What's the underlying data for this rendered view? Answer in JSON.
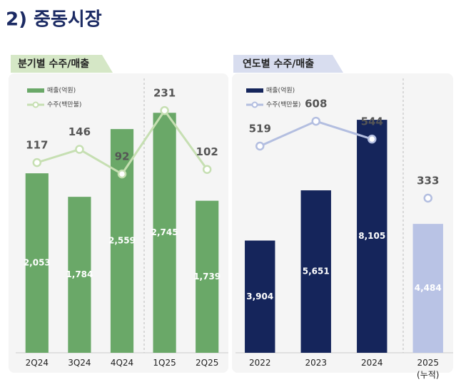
{
  "title": "2) 중동시장",
  "chart_data": [
    {
      "type": "bar_line",
      "tab": "분기별 수주/매출",
      "categories": [
        "2Q24",
        "3Q24",
        "4Q24",
        "1Q25",
        "2Q25"
      ],
      "series": [
        {
          "name": "매출(억원)",
          "color": "#6aa868",
          "values": [
            2053,
            1784,
            2559,
            2745,
            1739
          ],
          "value_labels": [
            "2,053",
            "1,784",
            "2,559",
            "2,745",
            "1,739"
          ]
        },
        {
          "name": "수주(백만불)",
          "color": "#c6dfb2",
          "axis": "y2",
          "values": [
            117,
            146,
            92,
            231,
            102
          ]
        }
      ],
      "ylim": [
        0,
        3000
      ],
      "y2lim": [
        -300,
        275
      ]
    },
    {
      "type": "bar_line",
      "tab": "연도별 수주/매출",
      "categories": [
        "2022",
        "2023",
        "2024",
        "2025\n(누적)"
      ],
      "series": [
        {
          "name": "매출(억원)",
          "color": "#15255b",
          "colors": [
            "#15255b",
            "#15255b",
            "#15255b",
            "#b9c3e5"
          ],
          "values": [
            3904,
            5651,
            8105,
            4484
          ],
          "value_labels": [
            "3,904",
            "5,651",
            "8,105",
            "4,484"
          ]
        },
        {
          "name": "수주(백만불)",
          "color": "#b3bee0",
          "axis": "y2",
          "values": [
            519,
            608,
            544,
            333
          ],
          "line_break_before": 3
        }
      ],
      "ylim": [
        0,
        9000
      ],
      "y2lim": [
        -220,
        705
      ]
    }
  ]
}
